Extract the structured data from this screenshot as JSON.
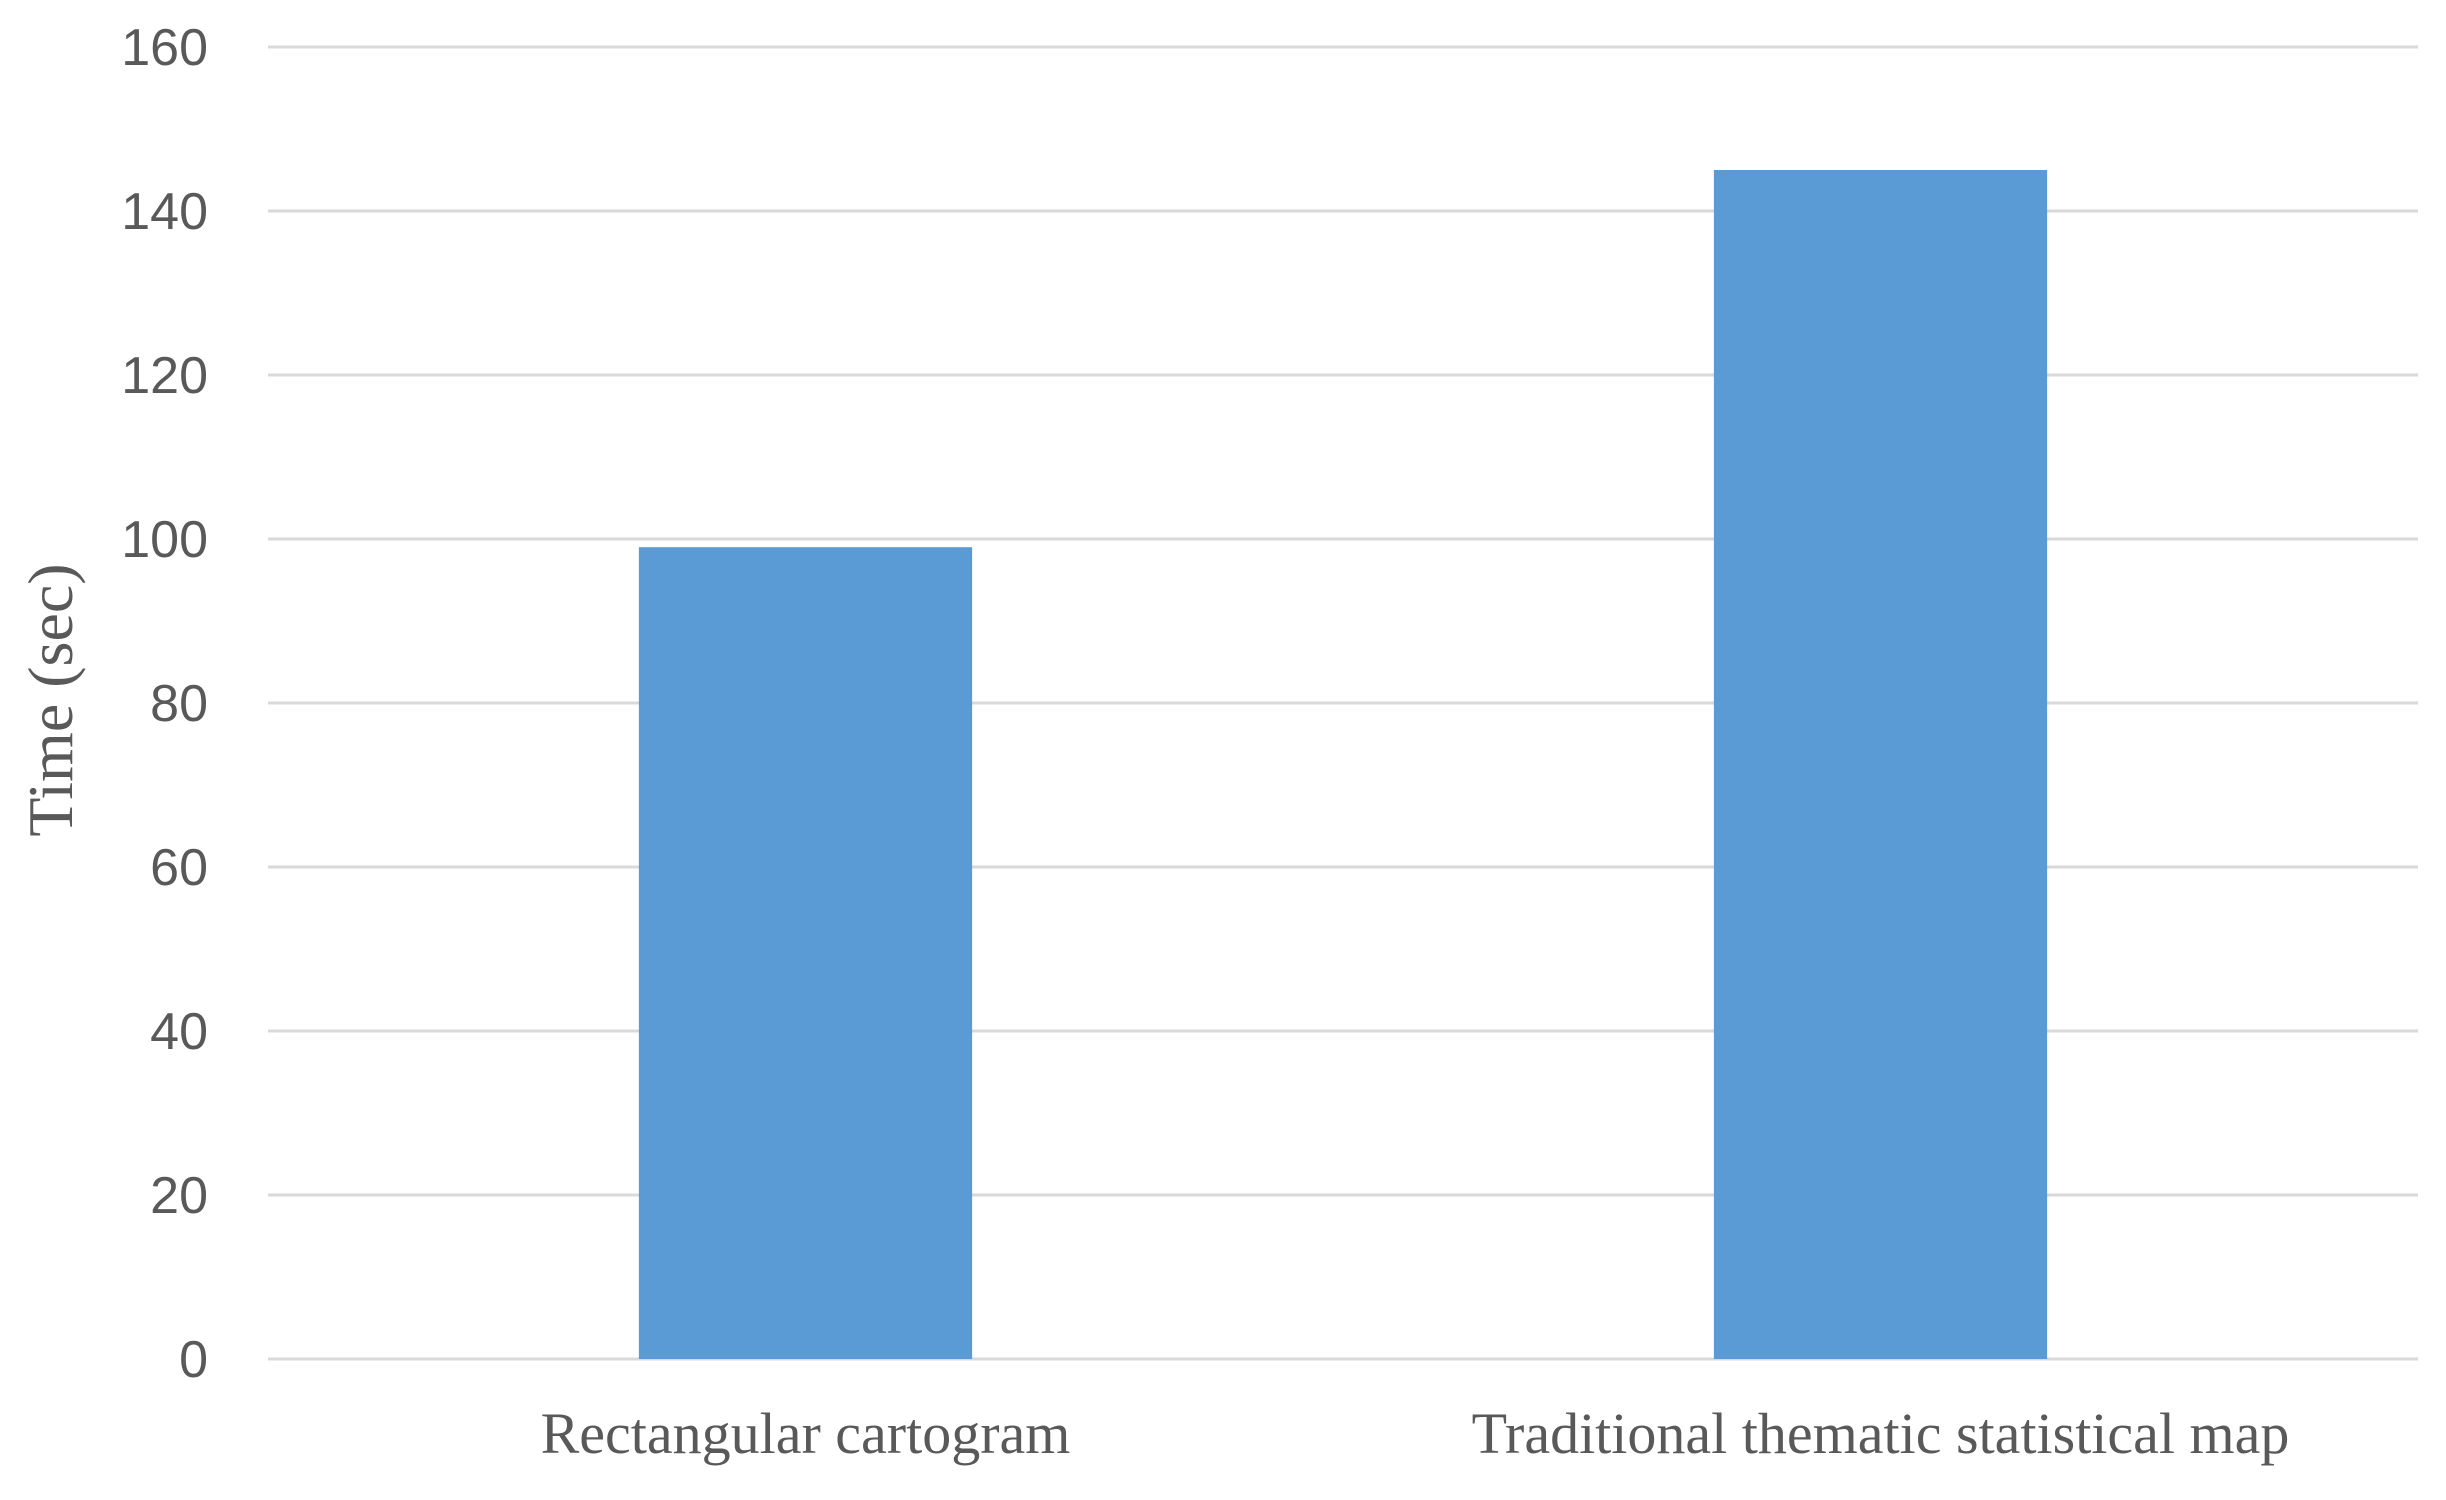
{
  "chart_data": {
    "type": "bar",
    "title": "",
    "xlabel": "",
    "ylabel": "Time (sec)",
    "categories": [
      "Rectangular cartogram",
      "Traditional thematic statistical map"
    ],
    "series": [
      {
        "values": [
          99,
          145
        ],
        "color": "#5b9bd5"
      }
    ],
    "ylim": [
      0,
      160
    ],
    "yticks": [
      "0",
      "20",
      "40",
      "60",
      "80",
      "100",
      "120",
      "140",
      "160"
    ],
    "grid": true,
    "legend": "none"
  }
}
